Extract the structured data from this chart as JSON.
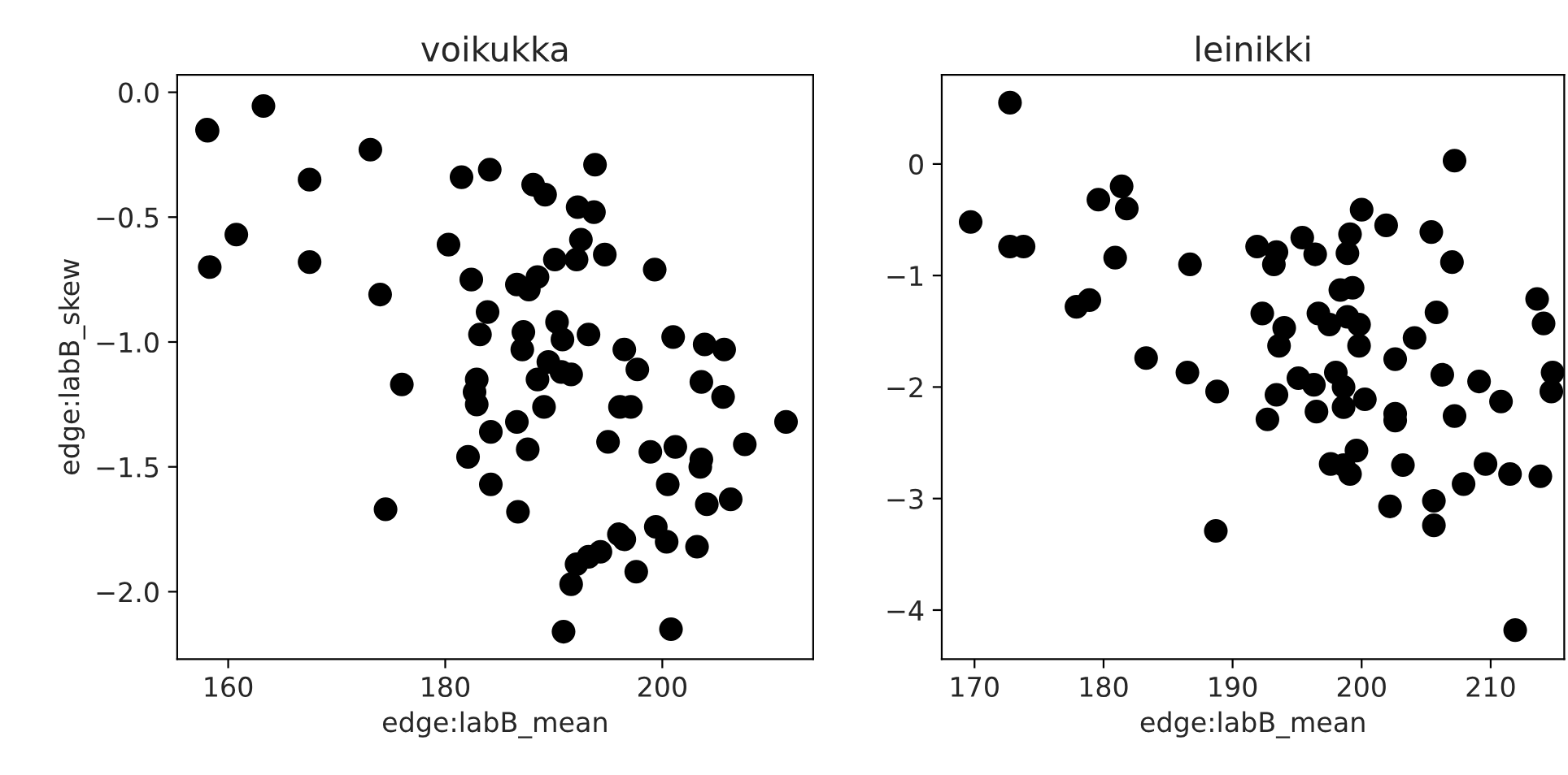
{
  "chart_data": [
    {
      "type": "scatter",
      "title": "voikukka",
      "xlabel": "edge:labB_mean",
      "ylabel": "edge:labB_skew",
      "marker": "circle",
      "xlim": [
        155.3,
        213.9
      ],
      "ylim": [
        -2.27,
        0.07
      ],
      "xticks": [
        160,
        180,
        200
      ],
      "yticks": [
        {
          "value": 0,
          "label": "0.0"
        },
        {
          "value": -0.5,
          "label": "−0.5"
        },
        {
          "value": -1,
          "label": "−1.0"
        },
        {
          "value": -1.5,
          "label": "−1.5"
        },
        {
          "value": -2,
          "label": "−2.0"
        }
      ],
      "series": [
        {
          "color": "#000000",
          "x": [
            158.05,
            163.25,
            158.1,
            167.5,
            173.1,
            181.5,
            184.1,
            160.75,
            158.3,
            167.5,
            180.3,
            182.4,
            174.0,
            183.9,
            183.2,
            176.0,
            182.9,
            182.7,
            182.9,
            184.2,
            182.1,
            184.2,
            174.5,
            188.1,
            189.2,
            193.8,
            192.2,
            193.7,
            192.5,
            192.1,
            194.7,
            190.1,
            199.3,
            188.5,
            186.6,
            187.7,
            187.2,
            187.1,
            190.3,
            190.8,
            193.2,
            189.5,
            188.5,
            190.7,
            191.6,
            189.1,
            196.5,
            197.7,
            201.0,
            203.9,
            205.7,
            203.6,
            205.6,
            196.1,
            197.1,
            211.4,
            186.6,
            187.6,
            195.0,
            198.9,
            201.2,
            207.6,
            203.6,
            203.5,
            200.5,
            186.7,
            204.1,
            206.3,
            196.0,
            196.5,
            199.4,
            200.4,
            203.2,
            194.3,
            193.2,
            192.1,
            197.6,
            191.6,
            190.9,
            200.8
          ],
          "values": [
            -0.15,
            -0.055,
            -0.154,
            -0.35,
            -0.23,
            -0.34,
            -0.31,
            -0.57,
            -0.7,
            -0.68,
            -0.61,
            -0.75,
            -0.81,
            -0.88,
            -0.97,
            -1.17,
            -1.15,
            -1.2,
            -1.25,
            -1.36,
            -1.46,
            -1.57,
            -1.67,
            -0.37,
            -0.41,
            -0.29,
            -0.46,
            -0.48,
            -0.59,
            -0.67,
            -0.65,
            -0.67,
            -0.71,
            -0.74,
            -0.77,
            -0.79,
            -0.96,
            -1.03,
            -0.92,
            -0.99,
            -0.97,
            -1.08,
            -1.15,
            -1.12,
            -1.13,
            -1.26,
            -1.03,
            -1.11,
            -0.98,
            -1.01,
            -1.03,
            -1.16,
            -1.22,
            -1.26,
            -1.26,
            -1.32,
            -1.32,
            -1.43,
            -1.4,
            -1.44,
            -1.42,
            -1.41,
            -1.47,
            -1.5,
            -1.57,
            -1.68,
            -1.65,
            -1.63,
            -1.77,
            -1.79,
            -1.74,
            -1.8,
            -1.82,
            -1.84,
            -1.86,
            -1.89,
            -1.92,
            -1.97,
            -2.16,
            -2.15
          ]
        }
      ]
    },
    {
      "type": "scatter",
      "title": "leinikki",
      "xlabel": "edge:labB_mean",
      "marker": "circle",
      "xlim": [
        167.46,
        215.7
      ],
      "ylim": [
        -4.44,
        0.8
      ],
      "xticks": [
        170,
        180,
        190,
        200,
        210
      ],
      "yticks": [
        0,
        {
          "value": -1,
          "label": "−1"
        },
        {
          "value": -2,
          "label": "−2"
        },
        {
          "value": -3,
          "label": "−3"
        },
        {
          "value": -4,
          "label": "−4"
        }
      ],
      "series": [
        {
          "color": "#000000",
          "x": [
            169.7,
            172.75,
            172.75,
            173.8,
            179.6,
            181.4,
            181.8,
            180.9,
            186.7,
            177.9,
            178.9,
            183.3,
            186.5,
            188.7,
            188.8,
            191.9,
            193.4,
            193.2,
            195.4,
            196.4,
            200.0,
            199.1,
            198.9,
            201.9,
            205.4,
            207.2,
            207.0,
            198.35,
            199.3,
            192.3,
            194.0,
            193.6,
            196.65,
            197.5,
            198.9,
            199.8,
            199.8,
            205.8,
            204.1,
            202.6,
            213.6,
            214.1,
            214.8,
            214.7,
            195.1,
            196.3,
            198.0,
            198.6,
            193.4,
            192.7,
            196.5,
            198.6,
            200.25,
            202.6,
            202.6,
            206.25,
            207.2,
            209.1,
            210.8,
            197.6,
            199.6,
            199.1,
            198.6,
            203.2,
            202.2,
            205.6,
            205.6,
            207.9,
            209.6,
            211.5,
            213.85,
            211.9
          ],
          "values": [
            -0.52,
            0.55,
            -0.74,
            -0.74,
            -0.32,
            -0.2,
            -0.4,
            -0.84,
            -0.9,
            -1.28,
            -1.22,
            -1.74,
            -1.87,
            -3.29,
            -2.04,
            -0.74,
            -0.79,
            -0.9,
            -0.66,
            -0.81,
            -0.41,
            -0.63,
            -0.8,
            -0.55,
            -0.61,
            0.03,
            -0.88,
            -1.13,
            -1.11,
            -1.34,
            -1.47,
            -1.63,
            -1.34,
            -1.44,
            -1.37,
            -1.44,
            -1.63,
            -1.33,
            -1.56,
            -1.75,
            -1.21,
            -1.43,
            -1.87,
            -2.04,
            -1.92,
            -1.98,
            -1.87,
            -2.0,
            -2.07,
            -2.29,
            -2.22,
            -2.18,
            -2.11,
            -2.24,
            -2.3,
            -1.89,
            -2.26,
            -1.95,
            -2.13,
            -2.69,
            -2.57,
            -2.78,
            -2.7,
            -2.7,
            -3.07,
            -3.02,
            -3.24,
            -2.87,
            -2.69,
            -2.78,
            -2.8,
            -4.18
          ]
        }
      ]
    }
  ]
}
